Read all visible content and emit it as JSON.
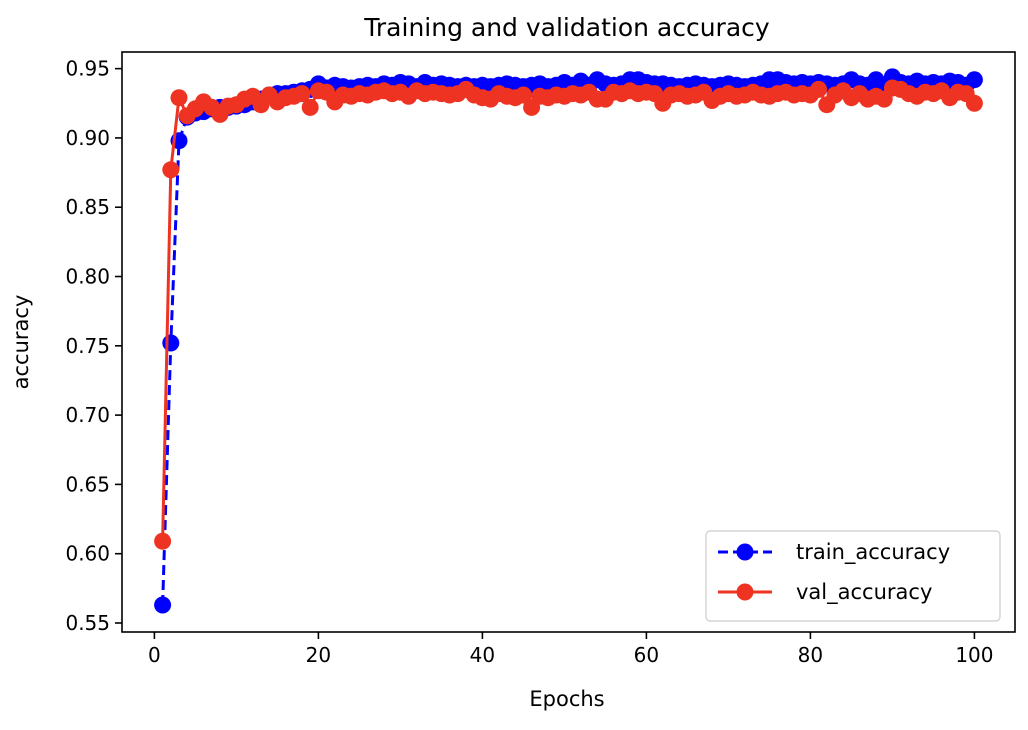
{
  "chart_data": {
    "type": "line",
    "title": "Training and validation accuracy",
    "xlabel": "Epochs",
    "ylabel": "accuracy",
    "xlim": [
      -3.95,
      104.95
    ],
    "ylim": [
      0.5435,
      0.962
    ],
    "xticks": [
      0,
      20,
      40,
      60,
      80,
      100
    ],
    "yticks": [
      0.55,
      0.6,
      0.65,
      0.7,
      0.75,
      0.8,
      0.85,
      0.9,
      0.95
    ],
    "grid": false,
    "legend_position": "lower-right",
    "x": [
      1,
      2,
      3,
      4,
      5,
      6,
      7,
      8,
      9,
      10,
      11,
      12,
      13,
      14,
      15,
      16,
      17,
      18,
      19,
      20,
      21,
      22,
      23,
      24,
      25,
      26,
      27,
      28,
      29,
      30,
      31,
      32,
      33,
      34,
      35,
      36,
      37,
      38,
      39,
      40,
      41,
      42,
      43,
      44,
      45,
      46,
      47,
      48,
      49,
      50,
      51,
      52,
      53,
      54,
      55,
      56,
      57,
      58,
      59,
      60,
      61,
      62,
      63,
      64,
      65,
      66,
      67,
      68,
      69,
      70,
      71,
      72,
      73,
      74,
      75,
      76,
      77,
      78,
      79,
      80,
      81,
      82,
      83,
      84,
      85,
      86,
      87,
      88,
      89,
      90,
      91,
      92,
      93,
      94,
      95,
      96,
      97,
      98,
      99,
      100
    ],
    "series": [
      {
        "name": "train_accuracy",
        "color": "#0000ff",
        "style": "dashed-markers",
        "values": [
          0.563,
          0.752,
          0.898,
          0.915,
          0.918,
          0.919,
          0.921,
          0.922,
          0.922,
          0.923,
          0.924,
          0.926,
          0.928,
          0.931,
          0.932,
          0.932,
          0.933,
          0.934,
          0.935,
          0.939,
          0.936,
          0.938,
          0.937,
          0.936,
          0.937,
          0.938,
          0.937,
          0.939,
          0.938,
          0.94,
          0.939,
          0.937,
          0.94,
          0.938,
          0.939,
          0.938,
          0.937,
          0.938,
          0.937,
          0.938,
          0.937,
          0.938,
          0.939,
          0.938,
          0.937,
          0.938,
          0.939,
          0.937,
          0.938,
          0.94,
          0.938,
          0.941,
          0.938,
          0.942,
          0.939,
          0.938,
          0.939,
          0.942,
          0.942,
          0.94,
          0.939,
          0.939,
          0.938,
          0.937,
          0.938,
          0.939,
          0.938,
          0.937,
          0.938,
          0.939,
          0.938,
          0.937,
          0.938,
          0.939,
          0.942,
          0.942,
          0.94,
          0.939,
          0.94,
          0.939,
          0.94,
          0.939,
          0.938,
          0.939,
          0.942,
          0.939,
          0.938,
          0.942,
          0.938,
          0.944,
          0.94,
          0.939,
          0.941,
          0.939,
          0.94,
          0.939,
          0.941,
          0.94,
          0.938,
          0.942
        ]
      },
      {
        "name": "val_accuracy",
        "color": "#ee3322",
        "style": "solid-markers",
        "values": [
          0.609,
          0.877,
          0.929,
          0.916,
          0.921,
          0.926,
          0.922,
          0.917,
          0.923,
          0.924,
          0.928,
          0.93,
          0.924,
          0.931,
          0.926,
          0.929,
          0.93,
          0.932,
          0.922,
          0.934,
          0.933,
          0.926,
          0.931,
          0.93,
          0.932,
          0.931,
          0.933,
          0.934,
          0.932,
          0.933,
          0.93,
          0.934,
          0.932,
          0.933,
          0.932,
          0.931,
          0.932,
          0.935,
          0.931,
          0.929,
          0.928,
          0.932,
          0.93,
          0.929,
          0.931,
          0.922,
          0.93,
          0.929,
          0.931,
          0.93,
          0.932,
          0.931,
          0.933,
          0.928,
          0.928,
          0.933,
          0.932,
          0.934,
          0.932,
          0.933,
          0.932,
          0.925,
          0.931,
          0.932,
          0.93,
          0.931,
          0.933,
          0.927,
          0.93,
          0.932,
          0.93,
          0.931,
          0.933,
          0.931,
          0.93,
          0.932,
          0.933,
          0.931,
          0.932,
          0.931,
          0.935,
          0.924,
          0.931,
          0.934,
          0.929,
          0.932,
          0.928,
          0.93,
          0.928,
          0.936,
          0.935,
          0.932,
          0.93,
          0.933,
          0.932,
          0.934,
          0.929,
          0.933,
          0.932,
          0.925
        ]
      }
    ]
  }
}
